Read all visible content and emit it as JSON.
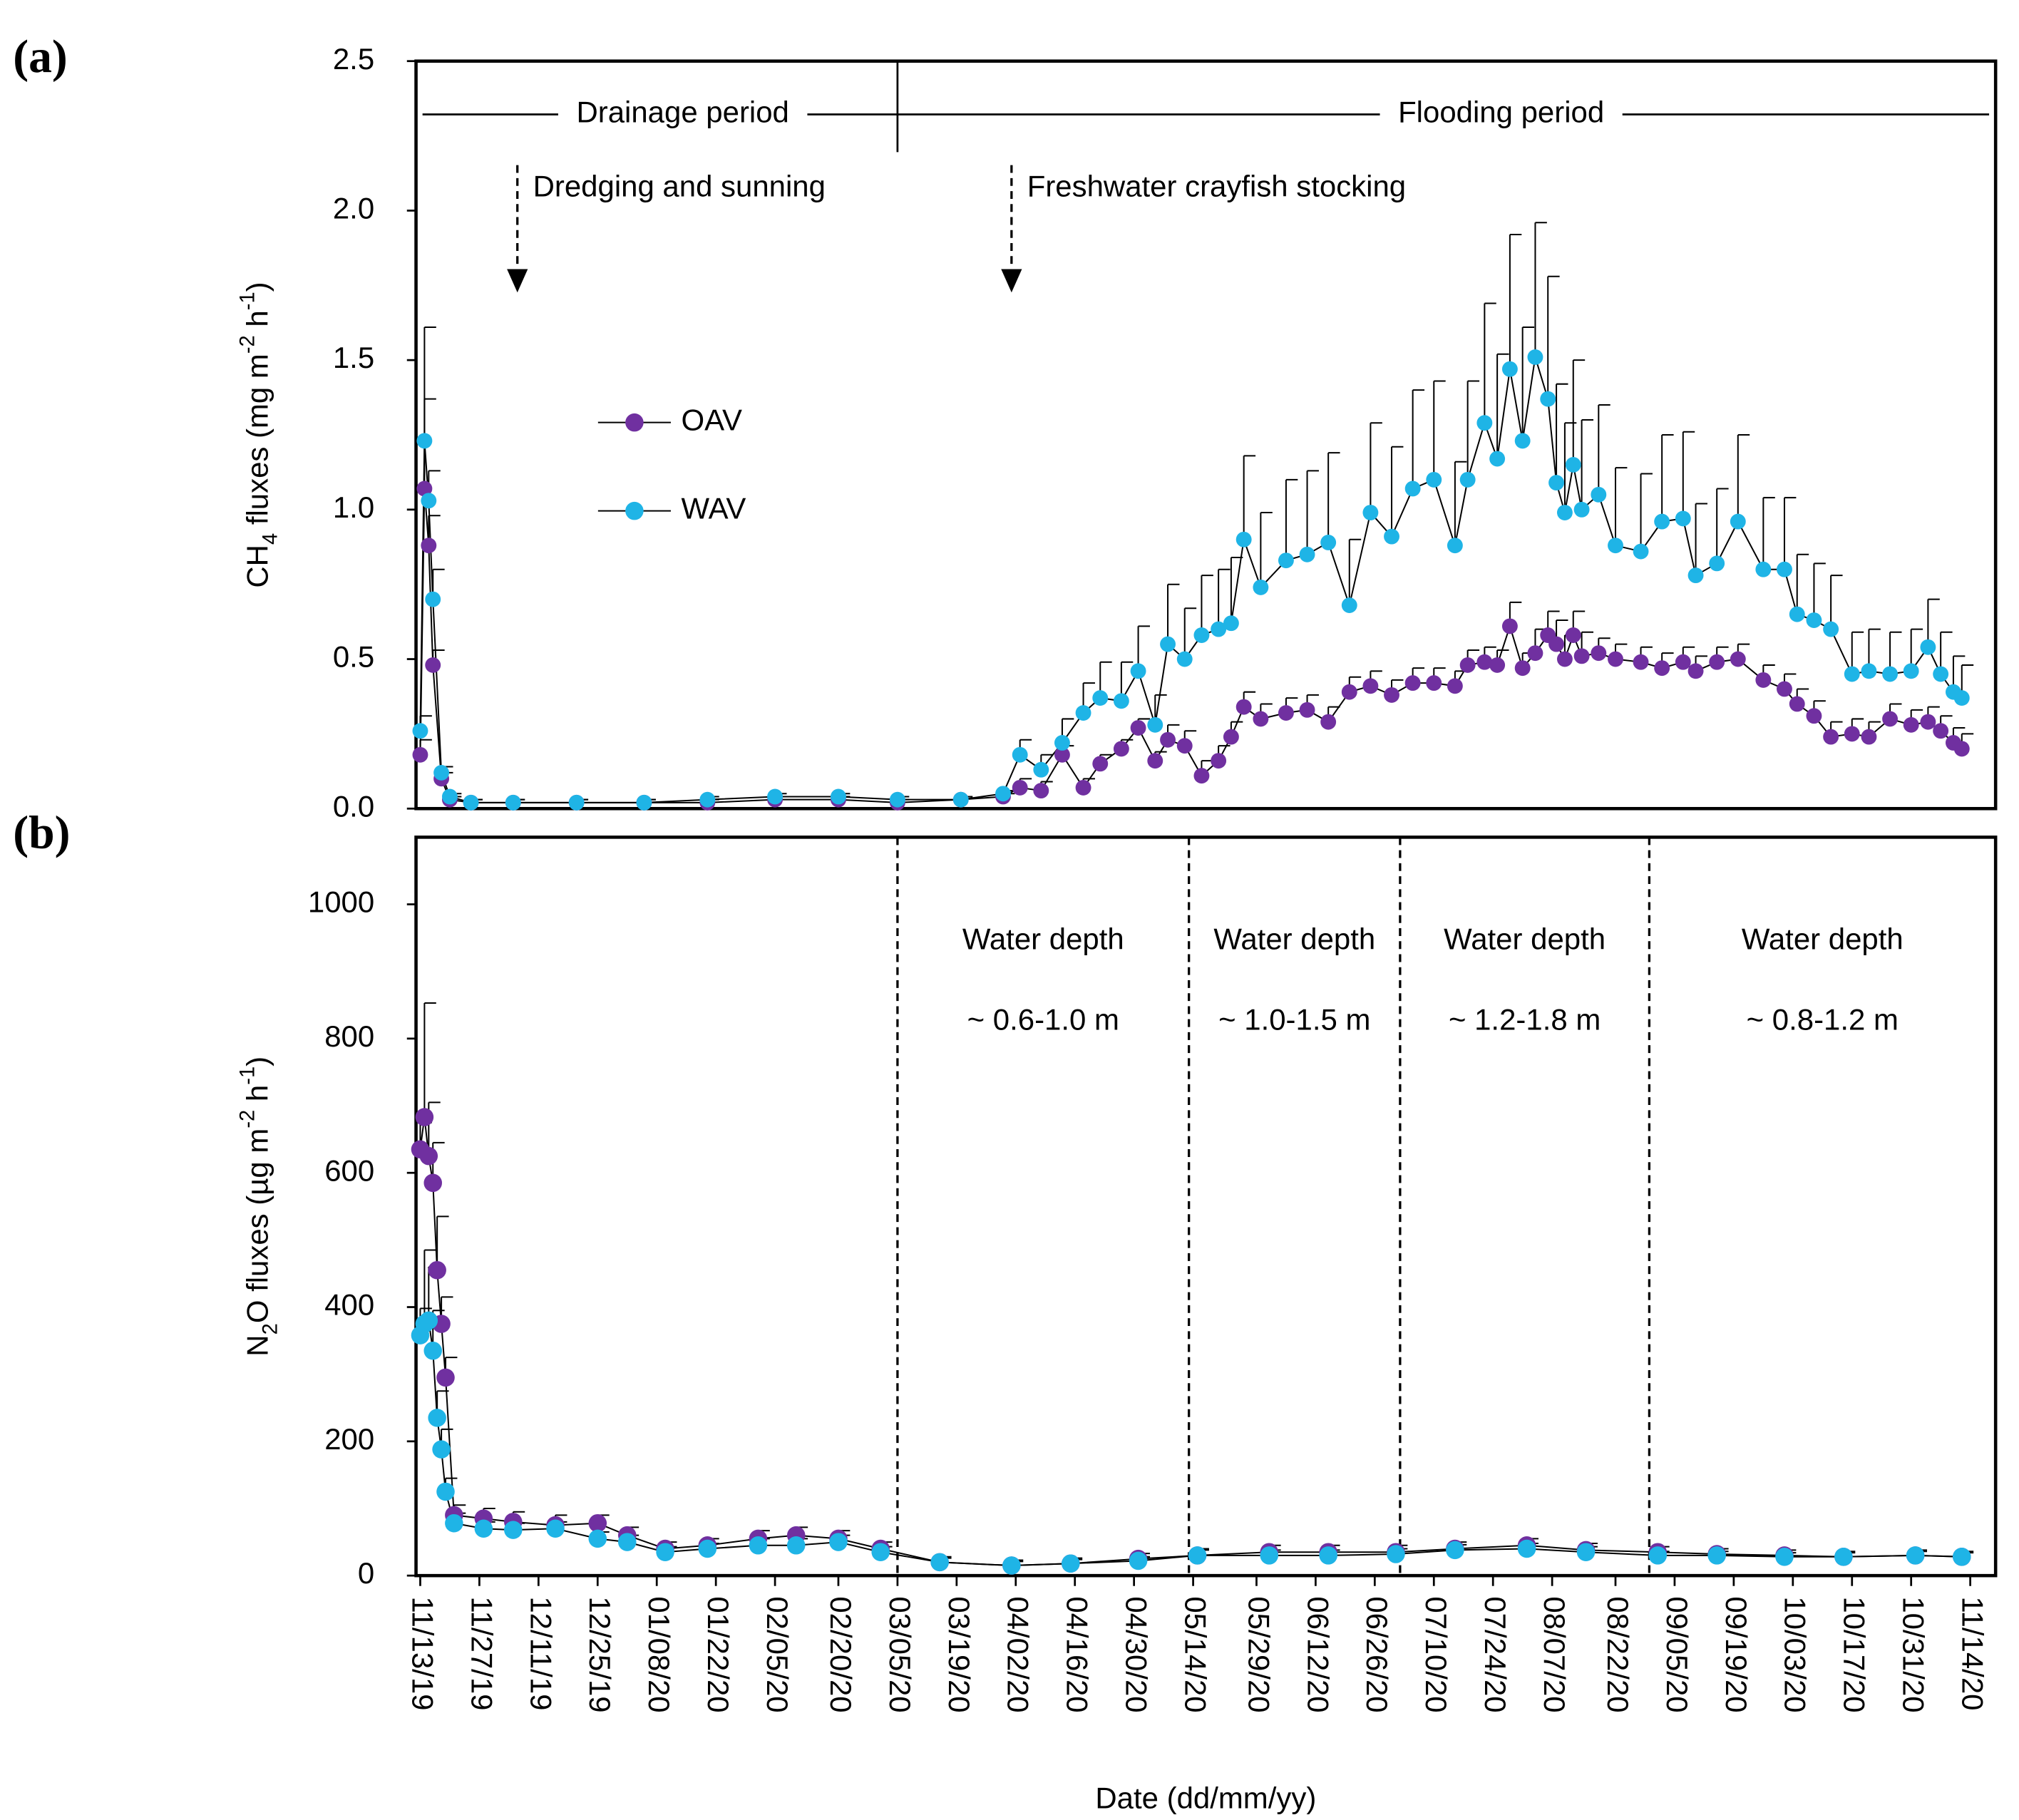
{
  "chart_data": [
    {
      "type": "line",
      "panel_label": "(a)",
      "ylabel": [
        {
          "text": "CH"
        },
        {
          "text": "4",
          "sub": true
        },
        {
          "text": " fluxes (mg m"
        },
        {
          "text": "-2",
          "sup": true
        },
        {
          "text": " h"
        },
        {
          "text": "-1",
          "sup": true
        },
        {
          "text": ")"
        }
      ],
      "xlim": [
        "2019-11-12",
        "2020-11-20"
      ],
      "ylim": [
        0,
        2.5
      ],
      "yticks": [
        {
          "value": 0,
          "label": "0.0"
        },
        0.5,
        {
          "value": 1,
          "label": "1.0"
        },
        1.5,
        {
          "value": 2,
          "label": "2.0"
        },
        2.5
      ],
      "legend": "upper left",
      "periods": {
        "divider": "2020-03-05",
        "labels": [
          "Drainage period",
          "Flooding period"
        ]
      },
      "arrows": [
        {
          "x": "2019-12-06",
          "text": "Dredging and sunning"
        },
        {
          "x": "2020-04-01",
          "text": "Freshwater crayfish stocking"
        }
      ],
      "x": [
        "2019-11-13",
        "2019-11-14",
        "2019-11-15",
        "2019-11-16",
        "2019-11-18",
        "2019-11-20",
        "2019-11-25",
        "2019-12-05",
        "2019-12-20",
        "2020-01-05",
        "2020-01-20",
        "2020-02-05",
        "2020-02-20",
        "2020-03-05",
        "2020-03-20",
        "2020-03-30",
        "2020-04-03",
        "2020-04-08",
        "2020-04-13",
        "2020-04-18",
        "2020-04-22",
        "2020-04-27",
        "2020-05-01",
        "2020-05-05",
        "2020-05-08",
        "2020-05-12",
        "2020-05-16",
        "2020-05-20",
        "2020-05-23",
        "2020-05-26",
        "2020-05-30",
        "2020-06-05",
        "2020-06-10",
        "2020-06-15",
        "2020-06-20",
        "2020-06-25",
        "2020-06-30",
        "2020-07-05",
        "2020-07-10",
        "2020-07-15",
        "2020-07-18",
        "2020-07-22",
        "2020-07-25",
        "2020-07-28",
        "2020-07-31",
        "2020-08-03",
        "2020-08-06",
        "2020-08-08",
        "2020-08-10",
        "2020-08-12",
        "2020-08-14",
        "2020-08-18",
        "2020-08-22",
        "2020-08-28",
        "2020-09-02",
        "2020-09-07",
        "2020-09-10",
        "2020-09-15",
        "2020-09-20",
        "2020-09-26",
        "2020-10-01",
        "2020-10-04",
        "2020-10-08",
        "2020-10-12",
        "2020-10-17",
        "2020-10-21",
        "2020-10-26",
        "2020-10-31",
        "2020-11-04",
        "2020-11-07",
        "2020-11-10",
        "2020-11-12"
      ],
      "series": [
        {
          "name": "OAV",
          "color": "#7030a0",
          "values": [
            0.18,
            1.07,
            0.88,
            0.48,
            0.1,
            0.03,
            0.02,
            0.02,
            0.02,
            0.02,
            0.02,
            0.03,
            0.03,
            0.02,
            0.03,
            0.04,
            0.07,
            0.06,
            0.18,
            0.07,
            0.15,
            0.2,
            0.27,
            0.16,
            0.23,
            0.21,
            0.11,
            0.16,
            0.24,
            0.34,
            0.3,
            0.32,
            0.33,
            0.29,
            0.39,
            0.41,
            0.38,
            0.42,
            0.42,
            0.41,
            0.48,
            0.49,
            0.48,
            0.61,
            0.47,
            0.52,
            0.58,
            0.55,
            0.5,
            0.58,
            0.51,
            0.52,
            0.5,
            0.49,
            0.47,
            0.49,
            0.46,
            0.49,
            0.5,
            0.43,
            0.4,
            0.35,
            0.31,
            0.24,
            0.25,
            0.24,
            0.3,
            0.28,
            0.29,
            0.26,
            0.22,
            0.2
          ],
          "errors": [
            0.05,
            0.3,
            0.1,
            0.05,
            0.02,
            0.01,
            0.01,
            0.01,
            0.01,
            0.01,
            0.01,
            0.01,
            0.01,
            0.01,
            0.01,
            0.01,
            0.03,
            0.03,
            0.03,
            0.03,
            0.03,
            0.03,
            0.03,
            0.03,
            0.05,
            0.05,
            0.05,
            0.05,
            0.05,
            0.05,
            0.05,
            0.05,
            0.05,
            0.05,
            0.05,
            0.05,
            0.05,
            0.05,
            0.05,
            0.05,
            0.05,
            0.05,
            0.05,
            0.08,
            0.05,
            0.08,
            0.08,
            0.08,
            0.08,
            0.08,
            0.08,
            0.05,
            0.05,
            0.05,
            0.05,
            0.05,
            0.05,
            0.05,
            0.05,
            0.05,
            0.05,
            0.05,
            0.05,
            0.05,
            0.05,
            0.05,
            0.05,
            0.05,
            0.05,
            0.05,
            0.05,
            0.05
          ]
        },
        {
          "name": "WAV",
          "color": "#1fb4e6",
          "values": [
            0.26,
            1.23,
            1.03,
            0.7,
            0.12,
            0.04,
            0.02,
            0.02,
            0.02,
            0.02,
            0.03,
            0.04,
            0.04,
            0.03,
            0.03,
            0.05,
            0.18,
            0.13,
            0.22,
            0.32,
            0.37,
            0.36,
            0.46,
            0.28,
            0.55,
            0.5,
            0.58,
            0.6,
            0.62,
            0.9,
            0.74,
            0.83,
            0.85,
            0.89,
            0.68,
            0.99,
            0.91,
            1.07,
            1.1,
            0.88,
            1.1,
            1.29,
            1.17,
            1.47,
            1.23,
            1.51,
            1.37,
            1.09,
            0.99,
            1.15,
            1.0,
            1.05,
            0.88,
            0.86,
            0.96,
            0.97,
            0.78,
            0.82,
            0.96,
            0.8,
            0.8,
            0.65,
            0.63,
            0.6,
            0.45,
            0.46,
            0.45,
            0.46,
            0.54,
            0.45,
            0.39,
            0.37
          ],
          "errors": [
            0.05,
            0.38,
            0.1,
            0.1,
            0.02,
            0.01,
            0.01,
            0.01,
            0.01,
            0.01,
            0.01,
            0.01,
            0.01,
            0.01,
            0.01,
            0.01,
            0.05,
            0.05,
            0.08,
            0.1,
            0.12,
            0.13,
            0.15,
            0.1,
            0.2,
            0.17,
            0.2,
            0.2,
            0.22,
            0.28,
            0.25,
            0.27,
            0.28,
            0.3,
            0.22,
            0.3,
            0.3,
            0.33,
            0.33,
            0.28,
            0.33,
            0.4,
            0.35,
            0.45,
            0.38,
            0.45,
            0.41,
            0.33,
            0.3,
            0.35,
            0.3,
            0.3,
            0.26,
            0.26,
            0.29,
            0.29,
            0.24,
            0.25,
            0.29,
            0.24,
            0.24,
            0.2,
            0.19,
            0.18,
            0.14,
            0.14,
            0.14,
            0.14,
            0.16,
            0.14,
            0.12,
            0.11
          ]
        }
      ]
    },
    {
      "type": "line",
      "panel_label": "(b)",
      "ylabel": [
        {
          "text": "N"
        },
        {
          "text": "2",
          "sub": true
        },
        {
          "text": "O fluxes (µg m"
        },
        {
          "text": "-2",
          "sup": true
        },
        {
          "text": " h"
        },
        {
          "text": "-1",
          "sup": true
        },
        {
          "text": ")"
        }
      ],
      "xlabel": "Date (dd/mm/yy)",
      "xlim": [
        "2019-11-12",
        "2020-11-20"
      ],
      "xticks": [
        {
          "value": "2019-11-13",
          "label": "11/13/19"
        },
        {
          "value": "2019-11-27",
          "label": "11/27/19"
        },
        {
          "value": "2019-12-11",
          "label": "12/11/19"
        },
        {
          "value": "2019-12-25",
          "label": "12/25/19"
        },
        {
          "value": "2020-01-08",
          "label": "01/08/20"
        },
        {
          "value": "2020-01-22",
          "label": "01/22/20"
        },
        {
          "value": "2020-02-05",
          "label": "02/05/20"
        },
        {
          "value": "2020-02-20",
          "label": "02/20/20"
        },
        {
          "value": "2020-03-05",
          "label": "03/05/20"
        },
        {
          "value": "2020-03-19",
          "label": "03/19/20"
        },
        {
          "value": "2020-04-02",
          "label": "04/02/20"
        },
        {
          "value": "2020-04-16",
          "label": "04/16/20"
        },
        {
          "value": "2020-04-30",
          "label": "04/30/20"
        },
        {
          "value": "2020-05-14",
          "label": "05/14/20"
        },
        {
          "value": "2020-05-29",
          "label": "05/29/20"
        },
        {
          "value": "2020-06-12",
          "label": "06/12/20"
        },
        {
          "value": "2020-06-26",
          "label": "06/26/20"
        },
        {
          "value": "2020-07-10",
          "label": "07/10/20"
        },
        {
          "value": "2020-07-24",
          "label": "07/24/20"
        },
        {
          "value": "2020-08-07",
          "label": "08/07/20"
        },
        {
          "value": "2020-08-22",
          "label": "08/22/20"
        },
        {
          "value": "2020-09-05",
          "label": "09/05/20"
        },
        {
          "value": "2020-09-19",
          "label": "09/19/20"
        },
        {
          "value": "2020-10-03",
          "label": "10/03/20"
        },
        {
          "value": "2020-10-17",
          "label": "10/17/20"
        },
        {
          "value": "2020-10-31",
          "label": "10/31/20"
        },
        {
          "value": "2020-11-14",
          "label": "11/14/20"
        }
      ],
      "ylim": [
        0,
        1100
      ],
      "yticks": [
        0,
        200,
        400,
        600,
        800,
        1000
      ],
      "dividers": [
        "2020-03-05",
        "2020-05-13",
        "2020-07-02",
        "2020-08-30"
      ],
      "regions": [
        {
          "lines": [
            "Water  depth",
            "~ 0.6-1.0 m"
          ]
        },
        {
          "lines": [
            "Water depth",
            "~ 1.0-1.5 m"
          ]
        },
        {
          "lines": [
            "Water depth",
            "~ 1.2-1.8 m"
          ]
        },
        {
          "lines": [
            "Water depth",
            "~ 0.8-1.2 m"
          ]
        }
      ],
      "x": [
        "2019-11-13",
        "2019-11-14",
        "2019-11-15",
        "2019-11-16",
        "2019-11-17",
        "2019-11-18",
        "2019-11-19",
        "2019-11-21",
        "2019-11-28",
        "2019-12-05",
        "2019-12-15",
        "2019-12-25",
        "2020-01-01",
        "2020-01-10",
        "2020-01-20",
        "2020-02-01",
        "2020-02-10",
        "2020-02-20",
        "2020-03-01",
        "2020-03-15",
        "2020-04-01",
        "2020-04-15",
        "2020-05-01",
        "2020-05-15",
        "2020-06-01",
        "2020-06-15",
        "2020-07-01",
        "2020-07-15",
        "2020-08-01",
        "2020-08-15",
        "2020-09-01",
        "2020-09-15",
        "2020-10-01",
        "2020-10-15",
        "2020-11-01",
        "2020-11-12"
      ],
      "series": [
        {
          "name": "OAV",
          "color": "#7030a0",
          "values": [
            635,
            683,
            625,
            585,
            455,
            375,
            295,
            90,
            85,
            80,
            75,
            78,
            60,
            40,
            45,
            55,
            60,
            55,
            40,
            20,
            15,
            18,
            25,
            30,
            35,
            35,
            35,
            40,
            45,
            38,
            35,
            32,
            30,
            28,
            30,
            28
          ],
          "errors": [
            40,
            170,
            80,
            60,
            80,
            40,
            30,
            15,
            15,
            15,
            15,
            12,
            12,
            10,
            10,
            12,
            12,
            12,
            10,
            8,
            8,
            8,
            8,
            10,
            10,
            10,
            10,
            10,
            10,
            10,
            8,
            8,
            8,
            8,
            8,
            8
          ]
        },
        {
          "name": "WAV",
          "color": "#1fb4e6",
          "values": [
            358,
            375,
            380,
            335,
            235,
            188,
            125,
            78,
            70,
            68,
            70,
            55,
            50,
            35,
            40,
            45,
            45,
            50,
            35,
            20,
            15,
            18,
            22,
            30,
            30,
            30,
            32,
            38,
            40,
            35,
            30,
            30,
            28,
            28,
            30,
            28
          ],
          "errors": [
            40,
            110,
            80,
            60,
            40,
            30,
            20,
            15,
            10,
            10,
            10,
            10,
            10,
            8,
            8,
            10,
            10,
            10,
            8,
            6,
            6,
            6,
            6,
            8,
            8,
            8,
            8,
            8,
            8,
            8,
            6,
            6,
            6,
            6,
            6,
            6
          ]
        }
      ]
    }
  ]
}
